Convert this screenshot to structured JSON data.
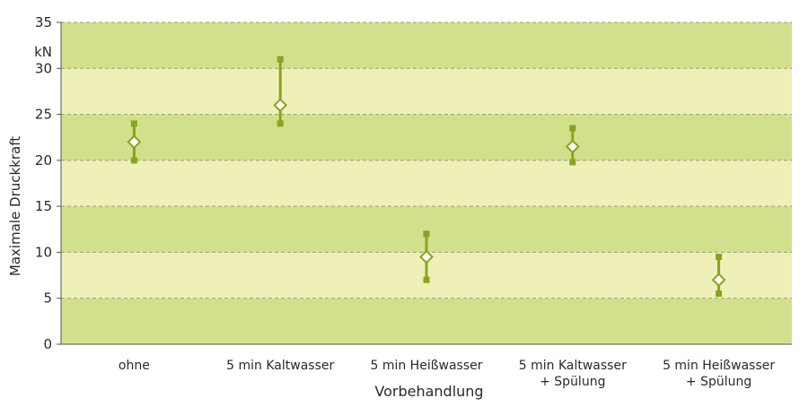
{
  "chart_data": {
    "type": "scatter",
    "xlabel": "Vorbehandlung",
    "ylabel": "Maximale Druckkraft",
    "yunit": "kN",
    "ylim": [
      0,
      35
    ],
    "yticks": [
      0,
      5,
      10,
      15,
      20,
      25,
      30,
      35
    ],
    "grid": true,
    "categories": [
      [
        "ohne"
      ],
      [
        "5 min Kaltwasser"
      ],
      [
        "5 min Heißwasser"
      ],
      [
        "5 min Kaltwasser",
        "+ Spülung"
      ],
      [
        "5 min Heißwasser",
        "+ Spülung"
      ]
    ],
    "series": [
      {
        "mean": [
          22,
          26,
          9.5,
          21.5,
          7
        ],
        "min": [
          20,
          24,
          7,
          19.8,
          5.5
        ],
        "max": [
          24,
          31,
          12,
          23.5,
          9.5
        ]
      }
    ],
    "colors": {
      "band_dark": "#d2e08c",
      "band_light": "#eef0b8",
      "grid": "#9a9a7a",
      "marker": "#8aa31e",
      "axis": "#555555"
    }
  }
}
